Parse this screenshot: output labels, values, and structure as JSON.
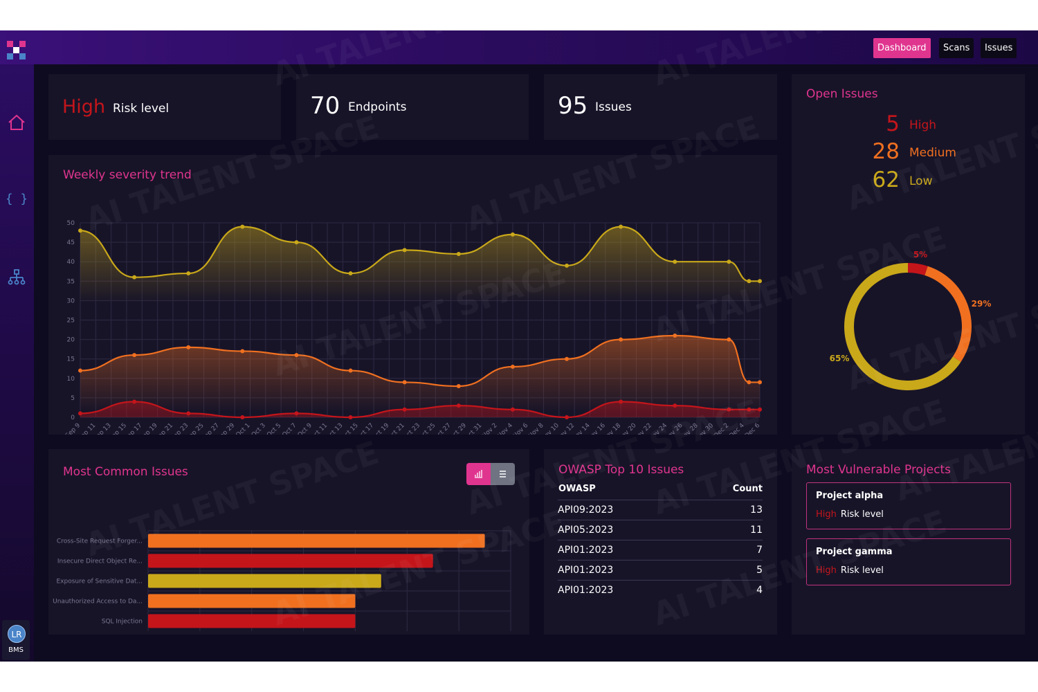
{
  "topbar": {
    "nav": [
      {
        "label": "Dashboard",
        "active": true
      },
      {
        "label": "Scans",
        "active": false
      },
      {
        "label": "Issues",
        "active": false
      }
    ]
  },
  "sidebar": {
    "icons": [
      "home-icon",
      "code-braces-icon",
      "sitemap-icon"
    ],
    "user": {
      "initials": "LR",
      "org": "BMS"
    }
  },
  "stats": {
    "risk": {
      "value": "High",
      "label": "Risk level"
    },
    "endpoints": {
      "value": "70",
      "label": "Endpoints"
    },
    "issues": {
      "value": "95",
      "label": "Issues"
    }
  },
  "open_issues": {
    "title": "Open Issues",
    "items": [
      {
        "count": "5",
        "label": "High",
        "color": "#c4151b"
      },
      {
        "count": "28",
        "label": "Medium",
        "color": "#f07020"
      },
      {
        "count": "62",
        "label": "Low",
        "color": "#c9a81a"
      }
    ],
    "donut": [
      {
        "label": "5%",
        "value": 5,
        "color": "#c4151b"
      },
      {
        "label": "29%",
        "value": 29,
        "color": "#f07020"
      },
      {
        "label": "65%",
        "value": 65,
        "color": "#c9a81a"
      }
    ]
  },
  "chart_data": [
    {
      "type": "area",
      "title": "Weekly severity trend",
      "x": [
        "Sep 9",
        "Sep 11",
        "Sep 13",
        "Sep 15",
        "Sep 17",
        "Sep 19",
        "Sep 21",
        "Sep 23",
        "Sep 25",
        "Sep 27",
        "Sep 29",
        "Oct 1",
        "Oct 3",
        "Oct 5",
        "Oct 7",
        "Oct 9",
        "Oct 11",
        "Oct 13",
        "Oct 15",
        "Oct 17",
        "Oct 19",
        "Oct 21",
        "Oct 23",
        "Oct 25",
        "Oct 27",
        "Oct 29",
        "Oct 31",
        "Nov 2",
        "Nov 4",
        "Nov 6",
        "Nov 8",
        "Nov 10",
        "Nov 12",
        "Nov 14",
        "Nov 16",
        "Nov 18",
        "Nov 20",
        "Nov 22",
        "Nov 24",
        "Nov 26",
        "Nov 28",
        "Nov 30",
        "Dec 2",
        "Dec 4",
        "Dec 6"
      ],
      "ylim": [
        0,
        50
      ],
      "yticks": [
        0,
        5,
        10,
        15,
        20,
        25,
        30,
        35,
        40,
        45,
        50
      ],
      "grid": true,
      "series": [
        {
          "color": "#c9a81a",
          "points": [
            [
              0,
              48
            ],
            [
              3.5,
              36
            ],
            [
              7,
              37
            ],
            [
              10.5,
              49
            ],
            [
              14,
              45
            ],
            [
              17.5,
              37
            ],
            [
              21,
              43
            ],
            [
              24.5,
              42
            ],
            [
              28,
              47
            ],
            [
              31.5,
              39
            ],
            [
              35,
              49
            ],
            [
              38.5,
              40
            ],
            [
              42,
              40
            ],
            [
              43.3,
              35
            ],
            [
              44,
              35
            ]
          ]
        },
        {
          "color": "#f07020",
          "points": [
            [
              0,
              12
            ],
            [
              3.5,
              16
            ],
            [
              7,
              18
            ],
            [
              10.5,
              17
            ],
            [
              14,
              16
            ],
            [
              17.5,
              12
            ],
            [
              21,
              9
            ],
            [
              24.5,
              8
            ],
            [
              28,
              13
            ],
            [
              31.5,
              15
            ],
            [
              35,
              20
            ],
            [
              38.5,
              21
            ],
            [
              42,
              20
            ],
            [
              43.3,
              9
            ],
            [
              44,
              9
            ]
          ]
        },
        {
          "color": "#c4151b",
          "points": [
            [
              0,
              1
            ],
            [
              3.5,
              4
            ],
            [
              7,
              1
            ],
            [
              10.5,
              0
            ],
            [
              14,
              1
            ],
            [
              17.5,
              0
            ],
            [
              21,
              2
            ],
            [
              24.5,
              3
            ],
            [
              28,
              2
            ],
            [
              31.5,
              0
            ],
            [
              35,
              4
            ],
            [
              38.5,
              3
            ],
            [
              42,
              2
            ],
            [
              43.3,
              2
            ],
            [
              44,
              2
            ]
          ]
        }
      ]
    },
    {
      "type": "bar",
      "title": "Most Common Issues",
      "orientation": "horizontal",
      "categories": [
        "Cross-Site Request Forger...",
        "Insecure Direct Object Re...",
        "Exposure of Sensitive Dat...",
        "Unauthorized Access to Da...",
        "SQL Injection"
      ],
      "values": [
        13,
        11,
        9,
        8,
        8
      ],
      "colors": [
        "#f07020",
        "#c4151b",
        "#c9a81a",
        "#f07020",
        "#c4151b"
      ],
      "xlim": [
        0,
        14
      ],
      "xticks": [
        0,
        2,
        4,
        6,
        8,
        10,
        12,
        14
      ]
    }
  ],
  "owasp": {
    "title": "OWASP Top 10 Issues",
    "col_name": "OWASP",
    "col_count": "Count",
    "rows": [
      {
        "name": "API09:2023",
        "count": "13"
      },
      {
        "name": "API05:2023",
        "count": "11"
      },
      {
        "name": "API01:2023",
        "count": "7"
      },
      {
        "name": "API01:2023",
        "count": "5"
      },
      {
        "name": "API01:2023",
        "count": "4"
      }
    ]
  },
  "vulnerable": {
    "title": "Most Vulnerable Projects",
    "projects": [
      {
        "name": "Project alpha",
        "risk": "High",
        "risk_label": "Risk level"
      },
      {
        "name": "Project gamma",
        "risk": "High",
        "risk_label": "Risk level"
      }
    ]
  },
  "watermark": "AI TALENT SPACE"
}
